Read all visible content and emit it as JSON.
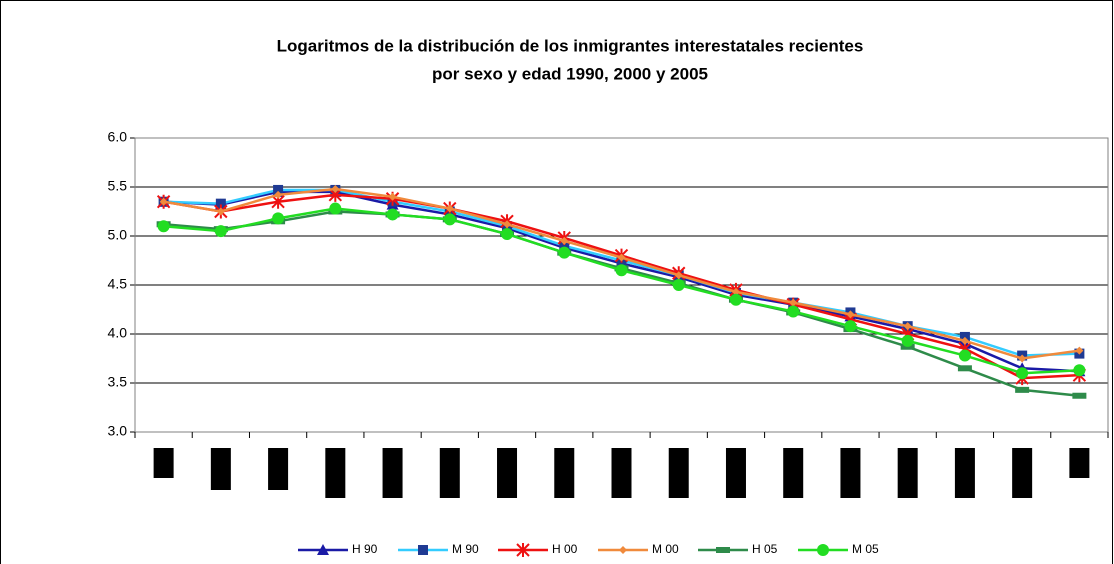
{
  "chart_data": {
    "type": "line",
    "title": [
      "Logaritmos de la distribución de los inmigrantes interestatales recientes",
      "por sexo y edad 1990, 2000 y 2005"
    ],
    "categories": [
      null,
      null,
      null,
      null,
      null,
      null,
      null,
      null,
      null,
      null,
      null,
      null,
      null,
      null,
      null,
      null,
      null
    ],
    "ylim": [
      3.0,
      6.0
    ],
    "yticks": [
      {
        "value": 3,
        "label": "3.0"
      },
      {
        "value": 3.5,
        "label": "3.5"
      },
      {
        "value": 4,
        "label": "4.0"
      },
      {
        "value": 4.5,
        "label": "4.5"
      },
      {
        "value": 5,
        "label": "5.0"
      },
      {
        "value": 5.5,
        "label": "5.5"
      },
      {
        "value": 6,
        "label": "6.0"
      }
    ],
    "grid": true,
    "legend": "bottom",
    "series": [
      {
        "name": "H 90",
        "color": "#1a1aa6",
        "marker": "triangle",
        "values": [
          5.35,
          5.32,
          5.45,
          5.45,
          5.32,
          5.22,
          5.08,
          4.88,
          4.72,
          4.58,
          4.4,
          4.3,
          4.18,
          4.05,
          3.9,
          3.65,
          3.62
        ]
      },
      {
        "name": "M 90",
        "color": "#33ccff",
        "marker_color": "#1f3a93",
        "marker": "square",
        "values": [
          5.35,
          5.33,
          5.47,
          5.47,
          5.35,
          5.25,
          5.1,
          4.9,
          4.75,
          4.6,
          4.42,
          4.32,
          4.22,
          4.08,
          3.97,
          3.78,
          3.8
        ]
      },
      {
        "name": "H 00",
        "color": "#ee1111",
        "marker": "x",
        "values": [
          5.35,
          5.25,
          5.35,
          5.42,
          5.38,
          5.28,
          5.15,
          4.98,
          4.8,
          4.62,
          4.45,
          4.3,
          4.15,
          4.0,
          3.85,
          3.55,
          3.58
        ]
      },
      {
        "name": "M 00",
        "color": "#f08a3c",
        "marker": "diamond",
        "values": [
          5.35,
          5.25,
          5.42,
          5.48,
          5.4,
          5.28,
          5.12,
          4.95,
          4.78,
          4.6,
          4.43,
          4.32,
          4.2,
          4.08,
          3.93,
          3.75,
          3.83
        ]
      },
      {
        "name": "H 05",
        "color": "#2e8b4a",
        "marker": "dash",
        "values": [
          5.12,
          5.07,
          5.15,
          5.25,
          5.22,
          5.17,
          5.02,
          4.83,
          4.67,
          4.52,
          4.35,
          4.22,
          4.05,
          3.87,
          3.65,
          3.43,
          3.37
        ]
      },
      {
        "name": "M 05",
        "color": "#22dd22",
        "marker": "circle",
        "values": [
          5.1,
          5.05,
          5.18,
          5.28,
          5.22,
          5.17,
          5.02,
          4.83,
          4.65,
          4.5,
          4.35,
          4.23,
          4.08,
          3.93,
          3.78,
          3.6,
          3.63
        ]
      }
    ]
  }
}
